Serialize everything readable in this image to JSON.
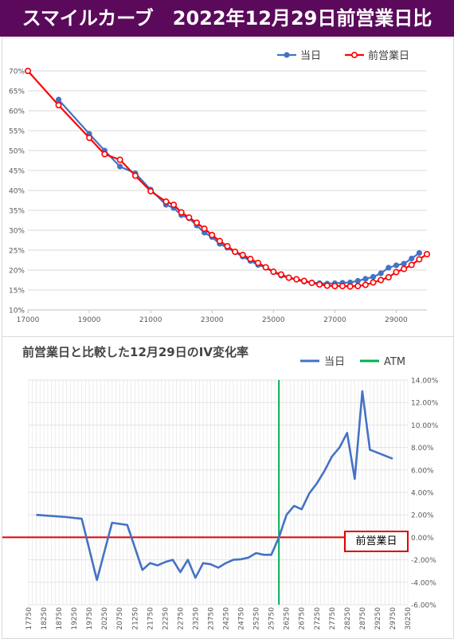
{
  "page_title": "スマイルカーブ　2022年12月29日前営業日比",
  "colors": {
    "title_bg": "#5b0a5b",
    "today": "#4472c4",
    "prev": "#ff0000",
    "atm": "#00b050",
    "ref_line": "#e00000"
  },
  "chart_data": [
    {
      "type": "line",
      "title": "",
      "xlim": [
        17000,
        30000
      ],
      "ylim": [
        10,
        70
      ],
      "x_ticks": [
        "17000",
        "19000",
        "21000",
        "23000",
        "25000",
        "27000",
        "29000"
      ],
      "y_ticks": [
        "10%",
        "15%",
        "20%",
        "25%",
        "30%",
        "35%",
        "40%",
        "45%",
        "50%",
        "55%",
        "60%",
        "65%",
        "70%"
      ],
      "grid": true,
      "legend": "top-right",
      "series": [
        {
          "name": "当日",
          "color": "#4472c4",
          "points": [
            [
              18000,
              62.8
            ],
            [
              19000,
              54.2
            ],
            [
              19500,
              50.0
            ],
            [
              20000,
              46.0
            ],
            [
              20500,
              44.3
            ],
            [
              21000,
              40.2
            ],
            [
              21500,
              36.4
            ],
            [
              21750,
              35.6
            ],
            [
              22000,
              33.8
            ],
            [
              22250,
              33.0
            ],
            [
              22500,
              31.2
            ],
            [
              22750,
              29.4
            ],
            [
              23000,
              28.3
            ],
            [
              23250,
              26.6
            ],
            [
              23500,
              25.6
            ],
            [
              23750,
              24.5
            ],
            [
              24000,
              23.4
            ],
            [
              24250,
              22.3
            ],
            [
              24500,
              21.3
            ],
            [
              24750,
              20.6
            ],
            [
              25000,
              19.5
            ],
            [
              25250,
              18.6
            ],
            [
              25500,
              18.0
            ],
            [
              25750,
              17.6
            ],
            [
              26000,
              17.1
            ],
            [
              26250,
              16.9
            ],
            [
              26500,
              16.7
            ],
            [
              26750,
              16.6
            ],
            [
              27000,
              16.7
            ],
            [
              27250,
              16.8
            ],
            [
              27500,
              16.9
            ],
            [
              27750,
              17.3
            ],
            [
              28000,
              17.8
            ],
            [
              28250,
              18.3
            ],
            [
              28500,
              19.2
            ],
            [
              28750,
              20.6
            ],
            [
              29000,
              21.2
            ],
            [
              29250,
              21.6
            ],
            [
              29500,
              22.9
            ],
            [
              29750,
              24.3
            ]
          ]
        },
        {
          "name": "前営業日",
          "color": "#ff0000",
          "points": [
            [
              17000,
              70.0
            ],
            [
              18000,
              61.4
            ],
            [
              19000,
              53.2
            ],
            [
              19500,
              49.1
            ],
            [
              20000,
              47.7
            ],
            [
              20500,
              43.7
            ],
            [
              21000,
              39.8
            ],
            [
              21500,
              37.2
            ],
            [
              21750,
              36.4
            ],
            [
              22000,
              34.5
            ],
            [
              22250,
              33.2
            ],
            [
              22500,
              31.9
            ],
            [
              22750,
              30.4
            ],
            [
              23000,
              28.8
            ],
            [
              23250,
              27.3
            ],
            [
              23500,
              26.0
            ],
            [
              23750,
              24.6
            ],
            [
              24000,
              23.8
            ],
            [
              24250,
              22.8
            ],
            [
              24500,
              21.8
            ],
            [
              24750,
              20.7
            ],
            [
              25000,
              19.6
            ],
            [
              25250,
              18.9
            ],
            [
              25500,
              18.1
            ],
            [
              25750,
              17.7
            ],
            [
              26000,
              17.3
            ],
            [
              26250,
              16.8
            ],
            [
              26500,
              16.4
            ],
            [
              26750,
              16.1
            ],
            [
              27000,
              16.0
            ],
            [
              27250,
              16.0
            ],
            [
              27500,
              15.9
            ],
            [
              27750,
              16.0
            ],
            [
              28000,
              16.3
            ],
            [
              28250,
              16.9
            ],
            [
              28500,
              17.5
            ],
            [
              28750,
              18.2
            ],
            [
              29000,
              19.5
            ],
            [
              29250,
              20.3
            ],
            [
              29500,
              21.3
            ],
            [
              29750,
              22.7
            ],
            [
              30000,
              24.0
            ]
          ]
        }
      ]
    },
    {
      "type": "line",
      "title": "前営業日と比較した12月29日のIV変化率",
      "xlim": [
        17750,
        30250
      ],
      "ylim": [
        -6,
        14
      ],
      "x_ticks": [
        "17750",
        "18250",
        "18750",
        "19250",
        "19750",
        "20250",
        "20750",
        "21250",
        "21750",
        "22250",
        "22750",
        "23250",
        "23750",
        "24250",
        "24750",
        "25250",
        "25750",
        "26250",
        "26750",
        "27250",
        "27750",
        "28250",
        "28750",
        "29250",
        "29750",
        "30250"
      ],
      "y_ticks": [
        "-6.00%",
        "-4.00%",
        "-2.00%",
        "0.00%",
        "2.00%",
        "4.00%",
        "6.00%",
        "8.00%",
        "10.00%",
        "12.00%",
        "14.00%"
      ],
      "grid": true,
      "legend": "top-right",
      "series": [
        {
          "name": "当日",
          "color": "#4472c4",
          "points": [
            [
              18000,
              2.0
            ],
            [
              19000,
              1.8
            ],
            [
              19500,
              1.65
            ],
            [
              20000,
              -3.8
            ],
            [
              20500,
              1.3
            ],
            [
              21000,
              1.1
            ],
            [
              21500,
              -2.9
            ],
            [
              21750,
              -2.3
            ],
            [
              22000,
              -2.5
            ],
            [
              22250,
              -2.2
            ],
            [
              22500,
              -2.0
            ],
            [
              22750,
              -3.1
            ],
            [
              23000,
              -2.0
            ],
            [
              23250,
              -3.6
            ],
            [
              23500,
              -2.3
            ],
            [
              23750,
              -2.4
            ],
            [
              24000,
              -2.7
            ],
            [
              24250,
              -2.3
            ],
            [
              24500,
              -2.0
            ],
            [
              24750,
              -1.95
            ],
            [
              25000,
              -1.8
            ],
            [
              25250,
              -1.4
            ],
            [
              25500,
              -1.55
            ],
            [
              25750,
              -1.55
            ],
            [
              26000,
              0.0
            ],
            [
              26250,
              2.0
            ],
            [
              26500,
              2.8
            ],
            [
              26750,
              2.5
            ],
            [
              27000,
              3.9
            ],
            [
              27250,
              4.8
            ],
            [
              27500,
              5.9
            ],
            [
              27750,
              7.2
            ],
            [
              28000,
              8.0
            ],
            [
              28250,
              9.3
            ],
            [
              28500,
              5.2
            ],
            [
              28750,
              13.0
            ],
            [
              29000,
              7.8
            ],
            [
              29750,
              7.0
            ]
          ]
        }
      ],
      "atm": {
        "name": "ATM",
        "x": 26000
      },
      "reference": {
        "name": "前営業日",
        "y": 0
      }
    }
  ]
}
